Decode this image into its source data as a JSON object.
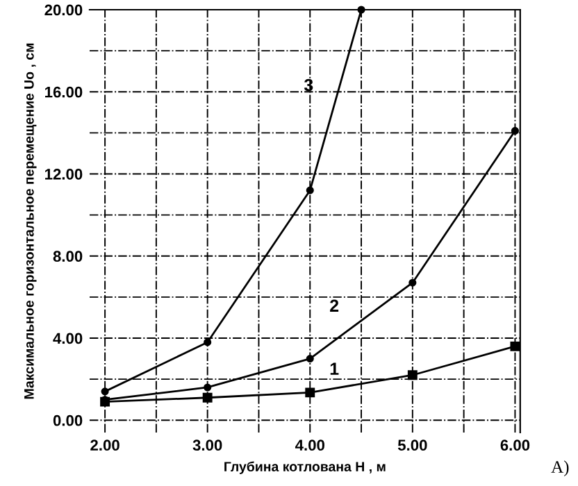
{
  "chart_data": {
    "type": "line",
    "xlabel": "Глубина котлована H , м",
    "ylabel": "Максимальное горизонтальное перемещение Uo , см",
    "xlim": [
      1.85,
      6.05
    ],
    "ylim": [
      -0.6,
      20
    ],
    "xticks": [
      {
        "value": 2,
        "label": "2.00"
      },
      {
        "value": 2.5,
        "label": null
      },
      {
        "value": 3,
        "label": "3.00"
      },
      {
        "value": 3.5,
        "label": null
      },
      {
        "value": 4,
        "label": "4.00"
      },
      {
        "value": 4.5,
        "label": null
      },
      {
        "value": 5,
        "label": "5.00"
      },
      {
        "value": 5.5,
        "label": null
      },
      {
        "value": 6,
        "label": "6.00"
      }
    ],
    "yticks": [
      {
        "value": 0,
        "label": "0.00"
      },
      {
        "value": 2,
        "label": null
      },
      {
        "value": 4,
        "label": "4.00"
      },
      {
        "value": 6,
        "label": null
      },
      {
        "value": 8,
        "label": "8.00"
      },
      {
        "value": 10,
        "label": null
      },
      {
        "value": 12,
        "label": "12.00"
      },
      {
        "value": 14,
        "label": null
      },
      {
        "value": 16,
        "label": "16.00"
      },
      {
        "value": 18,
        "label": null
      },
      {
        "value": 20,
        "label": "20.00"
      }
    ],
    "grid": true,
    "line_style": "solid",
    "series": [
      {
        "name": "1",
        "color": "#000000",
        "marker": "square",
        "x": [
          2,
          3,
          4,
          5,
          6
        ],
        "values": [
          0.9,
          1.1,
          1.35,
          2.2,
          3.6
        ]
      },
      {
        "name": "2",
        "color": "#000000",
        "marker": "circle",
        "x": [
          2,
          3,
          4,
          5,
          6
        ],
        "values": [
          1.0,
          1.6,
          3.0,
          6.7,
          14.1
        ]
      },
      {
        "name": "3",
        "color": "#000000",
        "marker": "circle",
        "x": [
          2,
          3,
          4,
          4.5
        ],
        "values": [
          1.4,
          3.8,
          11.2,
          20
        ]
      }
    ],
    "annotations": [
      "A)"
    ]
  }
}
